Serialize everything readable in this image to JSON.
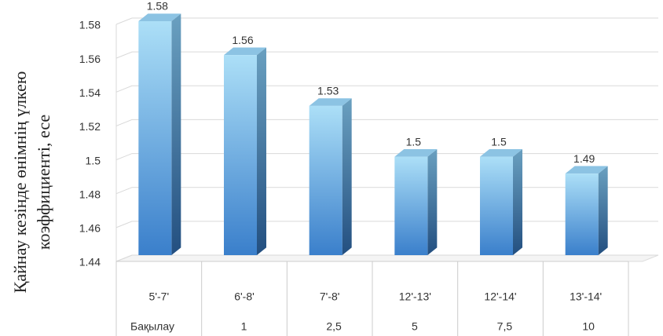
{
  "chart_data": {
    "type": "bar3d",
    "y_label": [
      "Қайнау кезінде өнімнің үлкею",
      "коэффициенті, есе"
    ],
    "categories": [
      "5'-7'",
      "6'-8'",
      "7'-8'",
      "12'-13'",
      "12'-14'",
      "13'-14'"
    ],
    "categories_2": [
      "Бақылау",
      "1",
      "2,5",
      "5",
      "7,5",
      "10"
    ],
    "values": [
      1.58,
      1.56,
      1.53,
      1.5,
      1.5,
      1.49
    ],
    "color": "#4a90d9",
    "ylim": [
      1.44,
      1.58
    ],
    "yticks": [
      1.44,
      1.46,
      1.48,
      1.5,
      1.52,
      1.54,
      1.56,
      1.58
    ],
    "grid": true
  }
}
